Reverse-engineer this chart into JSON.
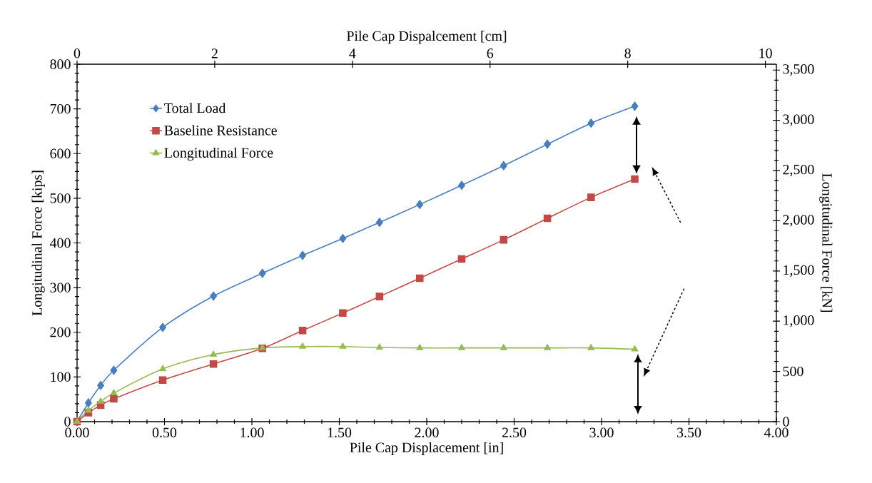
{
  "chart_data": {
    "type": "line",
    "xlabel": "Pile Cap Displacement [in]",
    "ylabel": "Longitudinal Force [kips]",
    "x2label": "Pile Cap Dispalcement [cm]",
    "y2label": "Longitudinal Force [kN]",
    "x": [
      0,
      0.065,
      0.135,
      0.21,
      0.49,
      0.78,
      1.06,
      1.29,
      1.52,
      1.73,
      1.96,
      2.2,
      2.44,
      2.69,
      2.94,
      3.19
    ],
    "series": [
      {
        "name": "Total Load",
        "color": "#4a7ebb",
        "marker": "diamond",
        "values": [
          0,
          42,
          81,
          115,
          211,
          281,
          332,
          372,
          410,
          446,
          486,
          529,
          573,
          621,
          668,
          706
        ]
      },
      {
        "name": "Baseline Resistance",
        "color": "#be4b48",
        "marker": "square",
        "values": [
          0,
          20,
          37,
          51,
          93,
          129,
          164,
          204,
          243,
          280,
          321,
          364,
          407,
          455,
          502,
          543
        ]
      },
      {
        "name": "Longitudinal Force",
        "color": "#98b954",
        "marker": "triangle",
        "values": [
          0,
          25,
          45,
          64,
          118,
          150,
          165,
          168,
          168,
          166,
          165,
          165,
          165,
          165,
          165,
          162
        ]
      }
    ],
    "xlim": [
      0,
      4
    ],
    "xticks": [
      {
        "value": 0,
        "label": "0.00"
      },
      {
        "value": 0.5,
        "label": "0.50"
      },
      {
        "value": 1,
        "label": "1.00"
      },
      {
        "value": 1.5,
        "label": "1.50"
      },
      {
        "value": 2,
        "label": "2.00"
      },
      {
        "value": 2.5,
        "label": "2.50"
      },
      {
        "value": 3,
        "label": "3.00"
      },
      {
        "value": 3.5,
        "label": "3.50"
      },
      {
        "value": 4,
        "label": "4.00"
      }
    ],
    "ylim": [
      0,
      800
    ],
    "yticks": [
      0,
      100,
      200,
      300,
      400,
      500,
      600,
      700,
      800
    ],
    "x2lim": [
      0,
      10.16
    ],
    "x2ticks": [
      0,
      2,
      4,
      6,
      8,
      10
    ],
    "y2lim": [
      0,
      3558.6
    ],
    "y2ticks": [
      0,
      500,
      {
        "value": 1000,
        "label": "1,000"
      },
      {
        "value": 1500,
        "label": "1,500"
      },
      {
        "value": 2000,
        "label": "2,000"
      },
      {
        "value": 2500,
        "label": "2,500"
      },
      {
        "value": 3000,
        "label": "3,000"
      },
      {
        "value": 3500,
        "label": "3,500"
      }
    ],
    "grid": false,
    "legend": "top left",
    "line_style": "solid"
  }
}
